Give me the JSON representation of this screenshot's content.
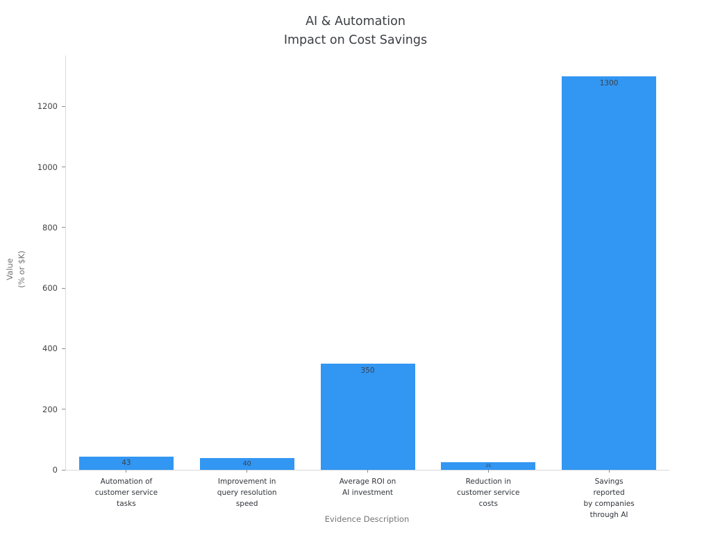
{
  "title": {
    "line1": "AI & Automation",
    "line2": "Impact on Cost Savings"
  },
  "chart_data": {
    "type": "bar",
    "categories": [
      "Automation of\ncustomer service\ntasks",
      "Improvement in\nquery resolution\nspeed",
      "Average ROI on\nAI investment",
      "Reduction in\ncustomer service\ncosts",
      "Savings reported\nby companies\nthrough AI"
    ],
    "values": [
      43,
      40,
      350,
      25,
      1300
    ],
    "title": "AI & Automation\nImpact on Cost Savings",
    "xlabel": "Evidence Description",
    "ylabel": "Value\n(% or $K)",
    "yticks": [
      0,
      200,
      400,
      600,
      800,
      1000,
      1200
    ],
    "ylim": [
      0,
      1368
    ],
    "grid": false,
    "legend": null,
    "bar_color": "#3296F3",
    "value_label_position": "inside-top"
  },
  "colors": {
    "bar": "#3296F3",
    "spine": "#d9d9d9",
    "tick_label": "#424242",
    "axis_title": "#757575",
    "chart_title": "#3a3d42",
    "bar_value_text": "#3a4149",
    "background": "#ffffff"
  }
}
